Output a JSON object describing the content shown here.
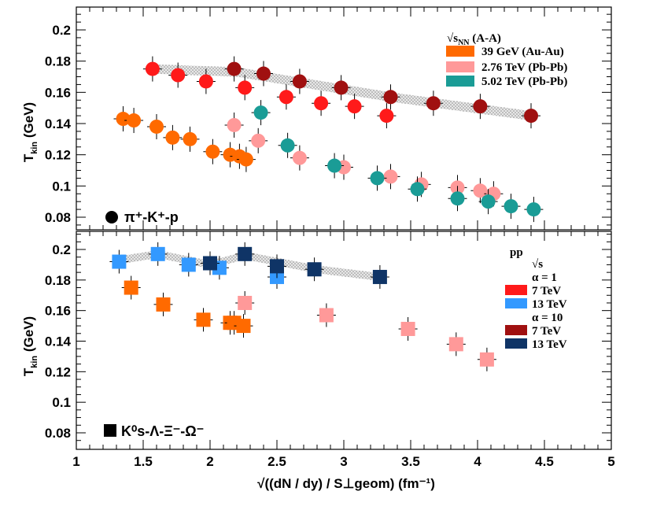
{
  "chart_data": [
    {
      "type": "scatter",
      "panel": "top",
      "panel_label": "π⁺-K⁺-p",
      "ylabel": "T_kin (GeV)",
      "ylim": [
        0.065,
        0.22
      ],
      "xlim": [
        1,
        5
      ],
      "yticks": [
        "0.08",
        "0.1",
        "0.12",
        "0.14",
        "0.16",
        "0.18",
        "0.2"
      ],
      "legend_header": "√sNN (A-A)",
      "legend": [
        {
          "label": "39 GeV (Au-Au)",
          "color": "#ff6a00"
        },
        {
          "label": "2.76 TeV (Pb-Pb)",
          "color": "#ff9999"
        },
        {
          "label": "5.02 TeV (Pb-Pb)",
          "color": "#1a9c96"
        }
      ],
      "series": [
        {
          "name": "39 GeV (Au-Au)",
          "color": "#ff6a00",
          "points": [
            [
              1.35,
              0.143
            ],
            [
              1.43,
              0.142
            ],
            [
              1.6,
              0.138
            ],
            [
              1.72,
              0.131
            ],
            [
              1.85,
              0.13
            ],
            [
              2.02,
              0.122
            ],
            [
              2.15,
              0.12
            ],
            [
              2.22,
              0.119
            ],
            [
              2.27,
              0.117
            ]
          ]
        },
        {
          "name": "2.76 TeV (Pb-Pb)",
          "color": "#ff9999",
          "points": [
            [
              2.18,
              0.139
            ],
            [
              2.36,
              0.129
            ],
            [
              2.67,
              0.118
            ],
            [
              3.0,
              0.112
            ],
            [
              3.35,
              0.106
            ],
            [
              3.58,
              0.101
            ],
            [
              3.85,
              0.099
            ],
            [
              4.02,
              0.097
            ],
            [
              4.12,
              0.095
            ]
          ]
        },
        {
          "name": "5.02 TeV (Pb-Pb)",
          "color": "#1a9c96",
          "points": [
            [
              2.38,
              0.147
            ],
            [
              2.58,
              0.126
            ],
            [
              2.93,
              0.113
            ],
            [
              3.25,
              0.105
            ],
            [
              3.55,
              0.098
            ],
            [
              3.85,
              0.092
            ],
            [
              4.08,
              0.09
            ],
            [
              4.25,
              0.087
            ],
            [
              4.42,
              0.085
            ]
          ]
        },
        {
          "name": "7 TeV α=1",
          "color": "#ff1a1a",
          "points": [
            [
              1.57,
              0.175
            ],
            [
              1.76,
              0.171
            ],
            [
              1.97,
              0.167
            ],
            [
              2.26,
              0.163
            ],
            [
              2.57,
              0.157
            ],
            [
              2.83,
              0.153
            ],
            [
              3.08,
              0.151
            ],
            [
              3.32,
              0.145
            ]
          ]
        },
        {
          "name": "7 TeV α=10",
          "color": "#a01010",
          "points": [
            [
              2.18,
              0.175
            ],
            [
              2.4,
              0.172
            ],
            [
              2.67,
              0.167
            ],
            [
              2.98,
              0.163
            ],
            [
              3.35,
              0.157
            ],
            [
              3.67,
              0.153
            ],
            [
              4.02,
              0.151
            ],
            [
              4.4,
              0.145
            ]
          ]
        }
      ]
    },
    {
      "type": "scatter",
      "panel": "bottom",
      "panel_label": "K⁰s-Λ-Ξ⁻-Ω⁻",
      "ylabel": "T_kin (GeV)",
      "xlabel": "√((dN / dy) / S⊥geom) (fm⁻¹)",
      "ylim": [
        0.07,
        0.21
      ],
      "xlim": [
        1,
        5
      ],
      "xticks": [
        "1",
        "1.5",
        "2",
        "2.5",
        "3",
        "3.5",
        "4",
        "4.5",
        "5"
      ],
      "yticks": [
        "0.08",
        "0.1",
        "0.12",
        "0.14",
        "0.16",
        "0.18",
        "0.2"
      ],
      "legend_header": "pp",
      "legend_sub": "√s",
      "legend": [
        {
          "label": "α = 1",
          "color": ""
        },
        {
          "label": "7 TeV",
          "color": "#ff1a1a"
        },
        {
          "label": "13 TeV",
          "color": "#3399ff"
        },
        {
          "label": "α = 10",
          "color": ""
        },
        {
          "label": "7 TeV",
          "color": "#a01010"
        },
        {
          "label": "13 TeV",
          "color": "#0f3466"
        }
      ],
      "series": [
        {
          "name": "39 GeV (Au-Au)",
          "color": "#ff6a00",
          "points": [
            [
              1.41,
              0.175
            ],
            [
              1.65,
              0.164
            ],
            [
              1.95,
              0.154
            ],
            [
              2.15,
              0.152
            ],
            [
              2.18,
              0.152
            ],
            [
              2.25,
              0.15
            ]
          ]
        },
        {
          "name": "2.76 TeV (Pb-Pb)",
          "color": "#ff9999",
          "points": [
            [
              2.26,
              0.165
            ],
            [
              2.87,
              0.157
            ],
            [
              3.48,
              0.148
            ],
            [
              3.84,
              0.138
            ],
            [
              4.07,
              0.128
            ]
          ]
        },
        {
          "name": "13 TeV α=1",
          "color": "#3399ff",
          "points": [
            [
              1.32,
              0.192
            ],
            [
              1.61,
              0.197
            ],
            [
              1.84,
              0.19
            ],
            [
              2.07,
              0.188
            ],
            [
              2.5,
              0.182
            ]
          ]
        },
        {
          "name": "13 TeV α=10",
          "color": "#0f3466",
          "points": [
            [
              2.0,
              0.191
            ],
            [
              2.26,
              0.197
            ],
            [
              2.5,
              0.189
            ],
            [
              2.78,
              0.187
            ],
            [
              3.27,
              0.182
            ]
          ]
        }
      ]
    }
  ],
  "labels": {
    "ylabel_main": "T",
    "ylabel_sub": "kin",
    "ylabel_unit": " (GeV)",
    "legend_top_header_main": "√s",
    "legend_top_header_sub": "NN",
    "legend_top_header_tail": " (A-A)",
    "legend_top": [
      "39 GeV (Au-Au)",
      "2.76 TeV (Pb-Pb)",
      "5.02 TeV (Pb-Pb)"
    ],
    "legend_bottom_header": "pp",
    "legend_bottom_sub": "√s",
    "legend_bottom": [
      "α = 1",
      "7 TeV",
      "13 TeV",
      "α = 10",
      "7 TeV",
      "13 TeV"
    ],
    "panel_top_label": "π⁺-K⁺-p",
    "panel_bottom_label": "K⁰s-Λ-Ξ⁻-Ω⁻",
    "xlabel": "√((dN / dy) / S⊥geom) (fm⁻¹)",
    "xticks": [
      "1",
      "1.5",
      "2",
      "2.5",
      "3",
      "3.5",
      "4",
      "4.5",
      "5"
    ],
    "yticks": [
      "0.08",
      "0.1",
      "0.12",
      "0.14",
      "0.16",
      "0.18",
      "0.2"
    ]
  }
}
